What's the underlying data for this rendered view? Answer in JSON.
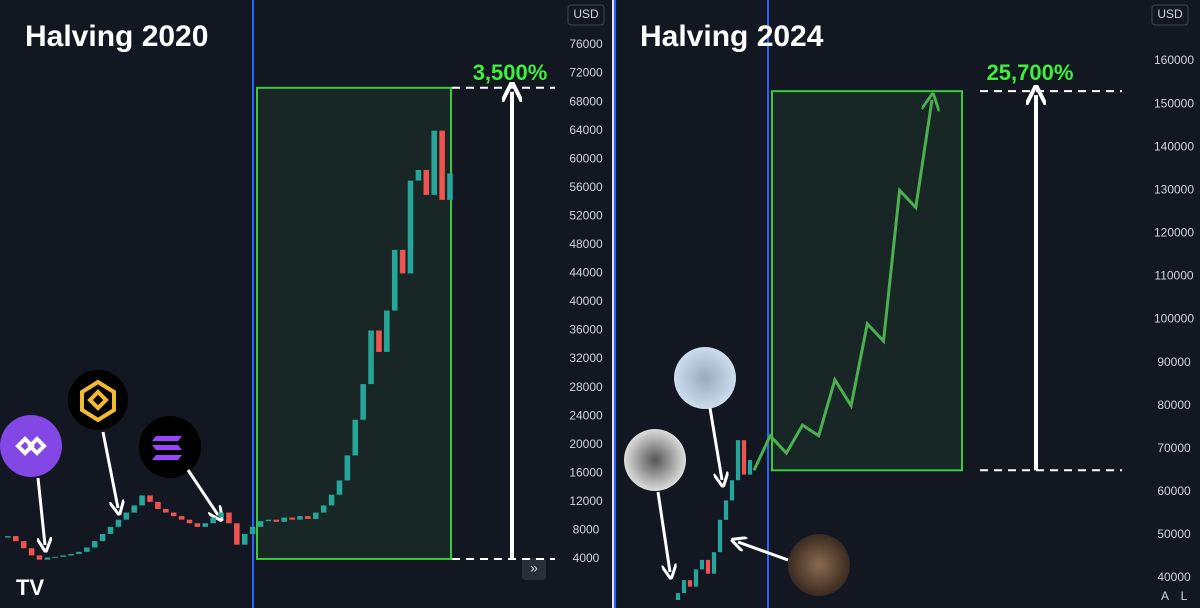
{
  "chart_data": [
    {
      "type": "candlestick",
      "title": "Halving 2020",
      "currency": "USD",
      "annotation": "3,500%",
      "ylim": [
        -2870,
        82300
      ],
      "yticks": [
        76000,
        72000,
        68000,
        64000,
        60000,
        56000,
        52000,
        48000,
        44000,
        40000,
        36000,
        32000,
        28000,
        24000,
        20000,
        16000,
        12000,
        8000,
        4000
      ],
      "target_range": [
        4000,
        70000
      ],
      "series": [
        {
          "color": "#26a69a",
          "down_color": "#ef5350",
          "style": "candle",
          "values": [
            7000,
            7200,
            6500,
            5500,
            4500,
            3900,
            4200,
            4300,
            4500,
            4700,
            5000,
            5600,
            6500,
            7500,
            8500,
            9500,
            10500,
            11500,
            12900,
            12000,
            11000,
            10500,
            10000,
            9500,
            9000,
            8500,
            9000,
            9800,
            10500,
            9000,
            6000,
            7500,
            8500,
            9300,
            9500,
            9200,
            9800,
            9500,
            10000,
            9600,
            10500,
            11500,
            13000,
            15000,
            18500,
            23500,
            28500,
            36000,
            33000,
            38800,
            47300,
            44000,
            57000,
            58500,
            55000,
            64000,
            54300,
            58000
          ]
        }
      ]
    },
    {
      "type": "candlestick",
      "title": "Halving 2024",
      "currency": "USD",
      "annotation": "25,700%",
      "ylim": [
        33040,
        174160
      ],
      "yticks": [
        160000,
        150000,
        140000,
        130000,
        120000,
        110000,
        100000,
        90000,
        80000,
        70000,
        60000,
        50000,
        40000
      ],
      "target_range": [
        65000,
        153000
      ],
      "buttons": [
        "A",
        "L"
      ],
      "series": [
        {
          "color": "#26a69a",
          "down_color": "#ef5350",
          "style": "candle",
          "values": [
            34900,
            36500,
            39500,
            38000,
            42000,
            44200,
            41000,
            46000,
            53500,
            58000,
            62700,
            72000,
            64000,
            67400
          ]
        },
        {
          "color": "#4caf50",
          "style": "line",
          "values": [
            65000,
            73000,
            69000,
            75500,
            73000,
            86000,
            80000,
            99000,
            95000,
            130000,
            126000,
            151000
          ]
        }
      ]
    }
  ]
}
